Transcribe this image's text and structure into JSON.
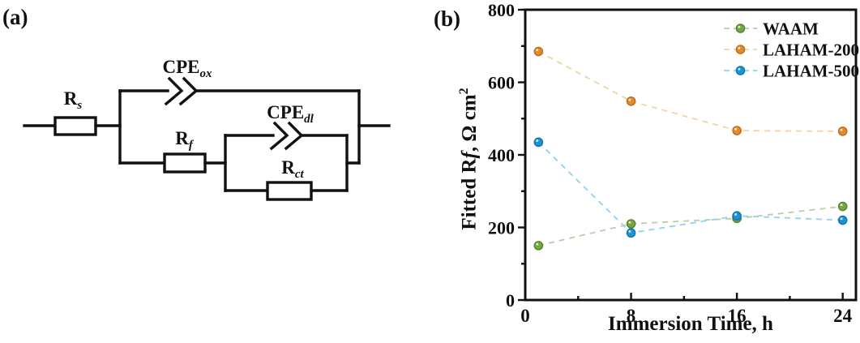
{
  "panel_a": {
    "label": "(a)",
    "components": {
      "rs": {
        "base": "R",
        "sub": "s"
      },
      "cpe_ox": {
        "base": "CPE",
        "sub": "ox"
      },
      "rf": {
        "base": "R",
        "sub": "f"
      },
      "cpe_dl": {
        "base": "CPE",
        "sub": "dl"
      },
      "rct": {
        "base": "R",
        "sub": "ct"
      }
    }
  },
  "panel_b": {
    "label": "(b)"
  },
  "chart_data": {
    "type": "scatter",
    "line_style": "dashed",
    "x": [
      1,
      8,
      16,
      24
    ],
    "series": [
      {
        "name": "WAAM",
        "values": [
          150,
          210,
          225,
          258
        ],
        "marker_color": "#74a743",
        "marker_edge": "#55832c",
        "line_color": "#b9cdaa"
      },
      {
        "name": "LAHAM-200",
        "values": [
          685,
          548,
          467,
          465
        ],
        "marker_color": "#e2892b",
        "marker_edge": "#b96d1e",
        "line_color": "#f3d2a6"
      },
      {
        "name": "LAHAM-500",
        "values": [
          435,
          185,
          232,
          220
        ],
        "marker_color": "#1c93d6",
        "marker_edge": "#1173ad",
        "line_color": "#8fd2ee"
      }
    ],
    "draw_order": [
      "WAAM",
      "LAHAM-200",
      "LAHAM-500"
    ],
    "title": "",
    "xlabel": "Immersion Time, h",
    "ylabel": "Fitted Rf, Ω cm2",
    "ylabel_parts": {
      "pre": "Fitted R",
      "f": "f",
      "mid": ", Ω cm",
      "sup": "2"
    },
    "xlim": [
      0,
      25
    ],
    "ylim": [
      0,
      800
    ],
    "xticks": [
      0,
      8,
      16,
      24
    ],
    "yticks": [
      0,
      200,
      400,
      600,
      800
    ],
    "x_minor_ticks": [
      4,
      12,
      20
    ],
    "y_minor_ticks": [
      100,
      300,
      500,
      700
    ],
    "grid": false,
    "legend_position": "top-right",
    "axis_color": "#111111"
  }
}
